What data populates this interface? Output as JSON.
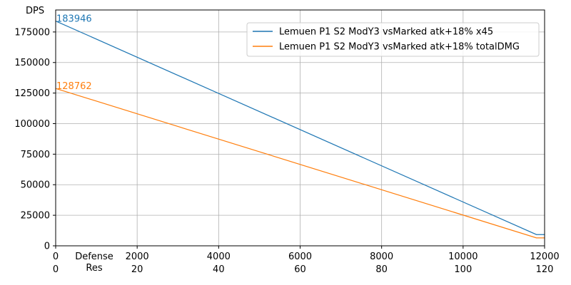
{
  "chart_data": {
    "type": "line",
    "title": "",
    "ylabel": "DPS",
    "xlabel": "Defense\nRes",
    "xlim": [
      0,
      12000
    ],
    "ylim": [
      0,
      193000
    ],
    "grid": true,
    "legend_position": "top-right",
    "x_ticks": [
      0,
      2000,
      4000,
      6000,
      8000,
      10000,
      12000
    ],
    "x_ticks_secondary": [
      0,
      20,
      40,
      60,
      80,
      100,
      120
    ],
    "y_ticks": [
      0,
      25000,
      50000,
      75000,
      100000,
      125000,
      150000,
      175000
    ],
    "series": [
      {
        "name": "Lemuen P1 S2 ModY3 vsMarked atk+18% x45",
        "color": "#1f77b4",
        "points": [
          [
            0,
            183946
          ],
          [
            11800,
            9200
          ],
          [
            12000,
            9200
          ]
        ]
      },
      {
        "name": "Lemuen P1 S2 ModY3 vsMarked atk+18% totalDMG",
        "color": "#ff7f0e",
        "points": [
          [
            0,
            128762
          ],
          [
            11800,
            6500
          ],
          [
            12000,
            6500
          ]
        ]
      }
    ],
    "annotations": [
      {
        "text": "183946",
        "x": 0,
        "y": 183946,
        "color": "#1f77b4"
      },
      {
        "text": "128762",
        "x": 0,
        "y": 128762,
        "color": "#ff7f0e"
      }
    ]
  }
}
